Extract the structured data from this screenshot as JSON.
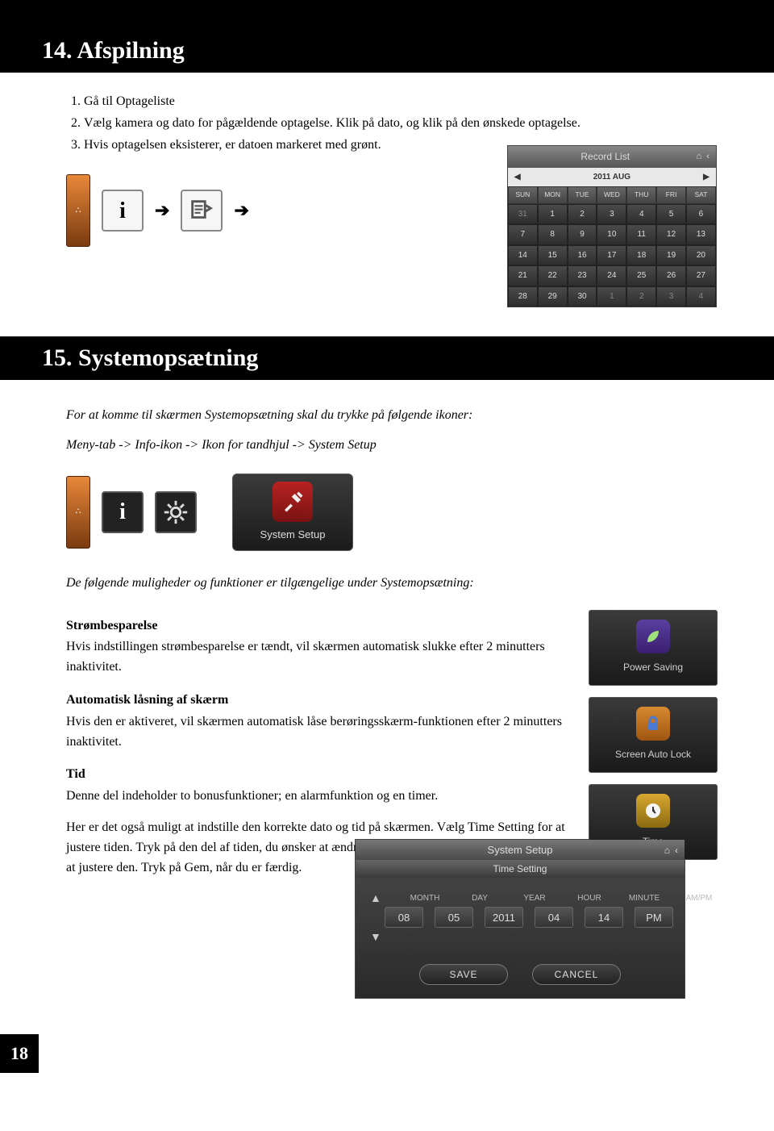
{
  "page_number": "18",
  "section14": {
    "title": "14. Afspilning",
    "steps": [
      "Gå til Optageliste",
      "Vælg kamera og dato for pågældende optagelse. Klik på dato, og klik på den ønskede optagelse.",
      "Hvis optagelsen eksisterer, er datoen markeret med grønt."
    ]
  },
  "calendar": {
    "title": "Record List",
    "month": "2011 AUG",
    "day_headers": [
      "SUN",
      "MON",
      "TUE",
      "WED",
      "THU",
      "FRI",
      "SAT"
    ],
    "rows": [
      [
        "31",
        "1",
        "2",
        "3",
        "4",
        "5",
        "6"
      ],
      [
        "7",
        "8",
        "9",
        "10",
        "11",
        "12",
        "13"
      ],
      [
        "14",
        "15",
        "16",
        "17",
        "18",
        "19",
        "20"
      ],
      [
        "21",
        "22",
        "23",
        "24",
        "25",
        "26",
        "27"
      ],
      [
        "28",
        "29",
        "30",
        "1",
        "2",
        "3",
        "4"
      ]
    ],
    "dim_cells": [
      "31",
      "1",
      "2",
      "3",
      "4"
    ],
    "bg_grad": [
      "#555",
      "#2a2a2a"
    ],
    "header_grad": [
      "#888",
      "#555"
    ]
  },
  "section15": {
    "title": "15. Systemopsætning",
    "intro": "For at komme til skærmen Systemopsætning skal du trykke på følgende ikoner:",
    "path": "Meny-tab -> Info-ikon -> Ikon for tandhjul -> System Setup",
    "setup_label": "System Setup",
    "sub_intro": "De følgende muligheder og funktioner er tilgængelige under Systemopsætning:",
    "power": {
      "heading": "Strømbesparelse",
      "body": "Hvis indstillingen strømbesparelse er tændt, vil skærmen automatisk slukke efter 2 minutters inaktivitet.",
      "tile": "Power Saving"
    },
    "lock": {
      "heading": "Automatisk låsning af skærm",
      "body": "Hvis den er aktiveret, vil skærmen automatisk låse berøringsskærm-funktionen efter 2 minutters inaktivitet.",
      "tile": "Screen Auto Lock"
    },
    "time": {
      "heading": "Tid",
      "body1": "Denne del indeholder to bonusfunktioner; en alarmfunktion og en timer.",
      "body2": "Her er det også muligt at indstille den korrekte dato og tid på skærmen. Vælg Time Setting for at justere tiden. Tryk på den del af tiden, du ønsker at ændre, og anvend op- og ned-knapperne for at justere den. Tryk på Gem, når du er færdig.",
      "tile": "Time"
    }
  },
  "time_panel": {
    "title": "System Setup",
    "subtitle": "Time Setting",
    "labels": [
      "MONTH",
      "DAY",
      "YEAR",
      "HOUR",
      "MINUTE",
      "AM/PM"
    ],
    "values": [
      "08",
      "05",
      "2011",
      "04",
      "14",
      "PM"
    ],
    "save": "SAVE",
    "cancel": "CANCEL",
    "bg_grad": [
      "#4a4a4a",
      "#2a2a2a"
    ]
  },
  "colors": {
    "black": "#000000",
    "white": "#ffffff",
    "menu_tab_grad": [
      "#e8883a",
      "#7a3a10"
    ],
    "tile_grad": [
      "#3a3a3a",
      "#1a1a1a"
    ],
    "setup_icon_grad": [
      "#b82222",
      "#7a1212"
    ]
  }
}
